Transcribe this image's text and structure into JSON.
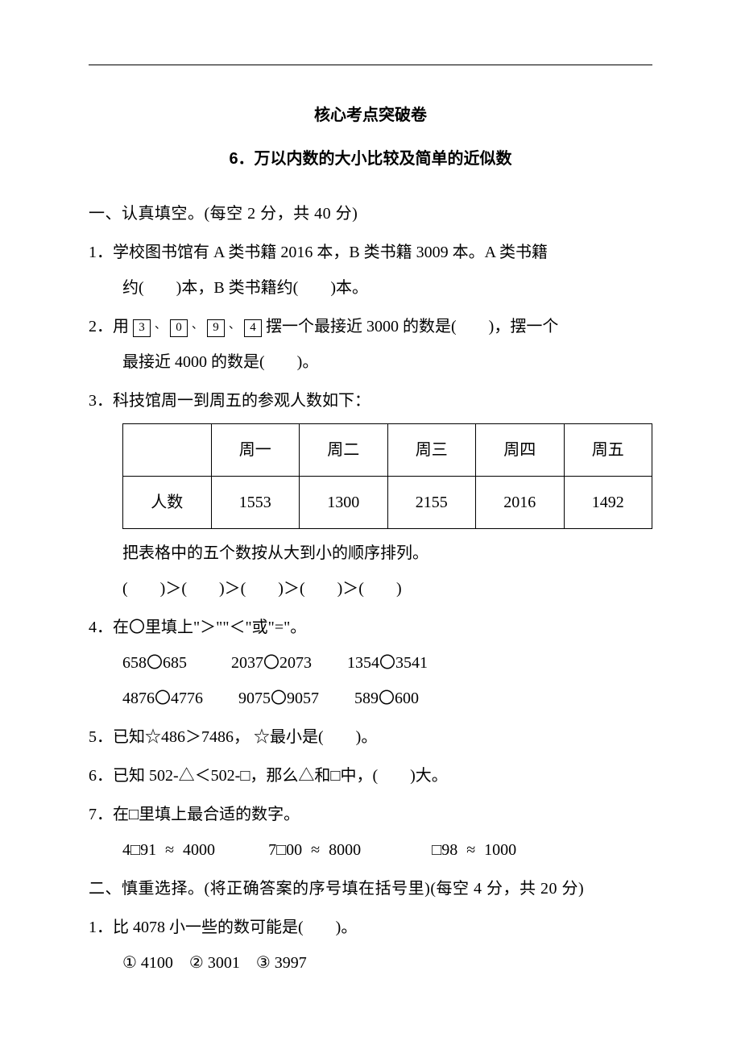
{
  "hr_visible": true,
  "title_main": "核心考点突破卷",
  "title_sub": "6．万以内数的大小比较及简单的近似数",
  "section1": {
    "head": "一、认真填空。(每空 2 分，共 40 分)",
    "q1_l1": "1．学校图书馆有 A 类书籍 2016 本，B 类书籍 3009 本。A 类书籍",
    "q1_l2": "约(　　)本，B 类书籍约(　　)本。",
    "q2_pre": "2．用",
    "q2_cards": [
      "3",
      "0",
      "9",
      "4"
    ],
    "q2_sep": "、",
    "q2_mid": "摆一个最接近 3000 的数是(　　)，摆一个",
    "q2_l2": "最接近 4000 的数是(　　)。",
    "q3_l1": "3．科技馆周一到周五的参观人数如下：",
    "q3_table": {
      "headers": [
        "",
        "周一",
        "周二",
        "周三",
        "周四",
        "周五"
      ],
      "row_label": "人数",
      "values": [
        "1553",
        "1300",
        "2155",
        "2016",
        "1492"
      ]
    },
    "q3_l2": "把表格中的五个数按从大到小的顺序排列。",
    "q3_l3": "(　　)＞(　　)＞(　　)＞(　　)＞(　　)",
    "q4_l1": "4．在〇里填上\"＞\"\"＜\"或\"=\"。",
    "q4_row1_a": "658〇685",
    "q4_row1_b": "2037〇2073",
    "q4_row1_c": "1354〇3541",
    "q4_row2_a": "4876〇4776",
    "q4_row2_b": "9075〇9057",
    "q4_row2_c": "589〇600",
    "q5": "5．已知☆486＞7486， ☆最小是(　　)。",
    "q6": "6．已知 502-△＜502-□，那么△和□中，(　　)大。",
    "q7_l1": "7．在□里填上最合适的数字。",
    "q7_a": "4□91 ≈ 4000",
    "q7_b": "7□00 ≈ 8000",
    "q7_c": "□98 ≈ 1000"
  },
  "section2": {
    "head": "二、慎重选择。(将正确答案的序号填在括号里)(每空 4 分，共 20 分)",
    "q1": "1．比 4078 小一些的数可能是(　　)。",
    "q1_opts": "① 4100　② 3001　③ 3997"
  }
}
